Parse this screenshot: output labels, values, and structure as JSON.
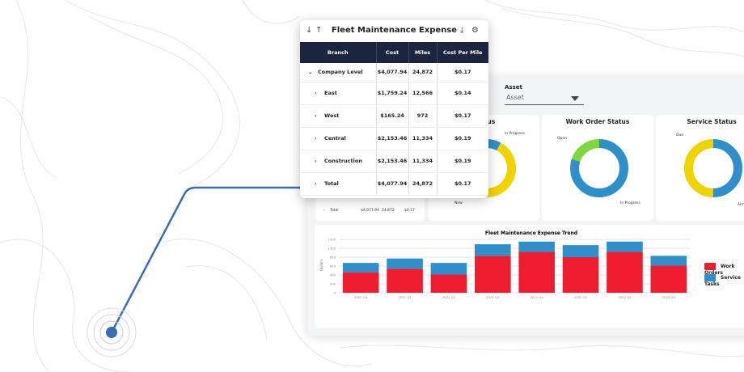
{
  "table": {
    "title": "Fleet Maintenance Expense",
    "columns": [
      "Branch",
      "Cost",
      "Miles",
      "Cost Per Mile"
    ],
    "rows": [
      {
        "branch": "Company Level",
        "cost": "$4,077.94",
        "miles": "24,872",
        "cpm": "$0.17",
        "expanded": true
      },
      {
        "branch": "East",
        "cost": "$1,759.24",
        "miles": "12,566",
        "cpm": "$0.14"
      },
      {
        "branch": "West",
        "cost": "$165.24",
        "miles": "972",
        "cpm": "$0.17"
      },
      {
        "branch": "Central",
        "cost": "$2,153.46",
        "miles": "11,334",
        "cpm": "$0.19"
      },
      {
        "branch": "Construction",
        "cost": "$2,153.46",
        "miles": "11,334",
        "cpm": "$0.19"
      },
      {
        "branch": "Total",
        "cost": "$4,077.94",
        "miles": "24,872",
        "cpm": "$0.17"
      }
    ],
    "icons": [
      "sort-down-icon",
      "sort-up-icon",
      "download-icon",
      "gear-icon"
    ]
  },
  "back_table": {
    "total": {
      "branch": "Total",
      "cost": "$4,077.94",
      "miles": "24,872",
      "cpm": "$0.17"
    }
  },
  "filter": {
    "label": "Asset",
    "placeholder": "Asset"
  },
  "donuts": [
    {
      "title": "Status",
      "labels": [
        "In Progress",
        "New"
      ],
      "values": [
        8,
        92
      ],
      "colors": [
        "#2f8fcb",
        "#f0d400"
      ]
    },
    {
      "title": "Work Order Status",
      "labels": [
        "Open",
        "In Progress"
      ],
      "values": [
        20,
        80
      ],
      "colors": [
        "#7ed640",
        "#2f8fcb"
      ]
    },
    {
      "title": "Service Status",
      "labels": [
        "Due",
        "Almost Due"
      ],
      "values": [
        50,
        50
      ],
      "colors": [
        "#f0d400",
        "#2f8fcb"
      ]
    }
  ],
  "chart_data": {
    "type": "bar",
    "title": "Fleet Maintenance Expense Trend",
    "ylabel": "Dollars",
    "ylim": [
      0,
      1200
    ],
    "yticks": [
      "0",
      "200",
      "400",
      "600",
      "800",
      "1000",
      "1200"
    ],
    "categories": [
      "2020 Q4",
      "2021 Q1",
      "2021 Q2",
      "2021 Q3",
      "2021 Q4",
      "2022 Q1",
      "2022 Q2",
      "2022 Q3"
    ],
    "stacked": true,
    "series": [
      {
        "name": "Work Orders",
        "color": "#ee1c2e",
        "values": [
          460,
          540,
          410,
          830,
          920,
          800,
          920,
          610
        ]
      },
      {
        "name": "Service Tasks",
        "color": "#2f8fcb",
        "values": [
          210,
          230,
          260,
          260,
          230,
          270,
          230,
          220
        ]
      }
    ],
    "grid": true,
    "legend": "right"
  }
}
